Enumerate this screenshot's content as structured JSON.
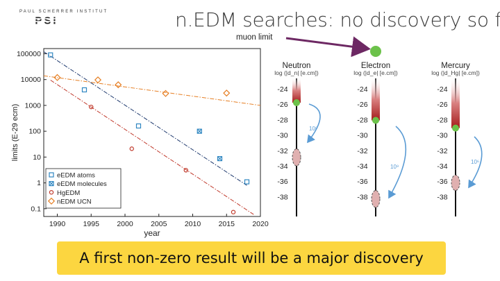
{
  "slide": {
    "title": "n.EDM searches: no discovery so far",
    "logo_text": "PAUL SCHERRER INSTITUT",
    "logo_mark": "PSI",
    "muon_label": "muon limit",
    "banner": "A first non-zero result will be a major discovery"
  },
  "colors": {
    "blue": "#2e86c1",
    "navy": "#1f3a6e",
    "red": "#c0392b",
    "orange": "#e67e22",
    "purple": "#6d2863",
    "green": "#6cc24a",
    "banner": "#fcd640"
  },
  "chart_data": [
    {
      "type": "scatter",
      "title": "",
      "xlabel": "year",
      "ylabel": "limits (E-29 ecm)",
      "xlim": [
        1988,
        2020
      ],
      "ylim_log10": [
        -1.3,
        5.2
      ],
      "xticks": [
        1990,
        1995,
        2000,
        2005,
        2010,
        2015,
        2020
      ],
      "yticks": [
        {
          "value": 100000,
          "label": "100000"
        },
        {
          "value": 10000,
          "label": "10000"
        },
        {
          "value": 1000,
          "label": "1000"
        },
        {
          "value": 100,
          "label": "100"
        },
        {
          "value": 10,
          "label": "10"
        },
        {
          "value": 1,
          "label": "1"
        },
        {
          "value": 0.1,
          "label": "0.1"
        }
      ],
      "legend_position": "bottom-left",
      "series": [
        {
          "name": "eEDM atoms",
          "marker": "square",
          "color": "#2e86c1",
          "x": [
            1989,
            1994,
            2002,
            2018
          ],
          "y": [
            90000,
            4000,
            160,
            1.1
          ]
        },
        {
          "name": "eEDM molecules",
          "marker": "square-x",
          "color": "#2e86c1",
          "x": [
            2011,
            2014
          ],
          "y": [
            100,
            8.7
          ]
        },
        {
          "name": "HgEDM",
          "marker": "circle",
          "color": "#c0392b",
          "x": [
            1995,
            2001,
            2009,
            2016
          ],
          "y": [
            870,
            21,
            3.1,
            0.074
          ]
        },
        {
          "name": "nEDM UCN",
          "marker": "diamond",
          "color": "#e67e22",
          "x": [
            1990,
            1996,
            1999,
            2006,
            2015
          ],
          "y": [
            12000,
            9700,
            6300,
            2900,
            3000
          ]
        }
      ],
      "trendlines": [
        {
          "name": "eEDM trend",
          "color": "#1f3a6e",
          "style": "dash-dot",
          "x": [
            1988,
            2018
          ],
          "y": [
            120000,
            0.8
          ]
        },
        {
          "name": "HgEDM trend",
          "color": "#c0392b",
          "style": "dash-dot",
          "x": [
            1989,
            2019
          ],
          "y": [
            9500,
            0.06
          ]
        },
        {
          "name": "nEDM trend",
          "color": "#e67e22",
          "style": "dash-dot",
          "x": [
            1988,
            2020
          ],
          "y": [
            14000,
            1000
          ]
        }
      ]
    },
    {
      "type": "scale-comparison",
      "axis_label": "log (|d| [e.cm])",
      "ticks": [
        -24,
        -26,
        -28,
        -30,
        -32,
        -34,
        -36,
        -38
      ],
      "columns": [
        {
          "name": "Neutron",
          "axis_label": "log (|d_n| [e.cm])",
          "limit": -25.8,
          "prediction_range": [
            -34,
            -31.8
          ],
          "gap_label": "10⁶"
        },
        {
          "name": "Electron",
          "axis_label": "log (|d_e| [e.cm])",
          "limit": -28.1,
          "prediction_range": [
            -39.4,
            -37.2
          ],
          "gap_label": "10⁹"
        },
        {
          "name": "Mercury",
          "axis_label": "log (|d_Hg| [e.cm])",
          "limit": -29.1,
          "prediction_range": [
            -37.2,
            -35.2
          ],
          "gap_label": "10⁶"
        }
      ]
    }
  ]
}
